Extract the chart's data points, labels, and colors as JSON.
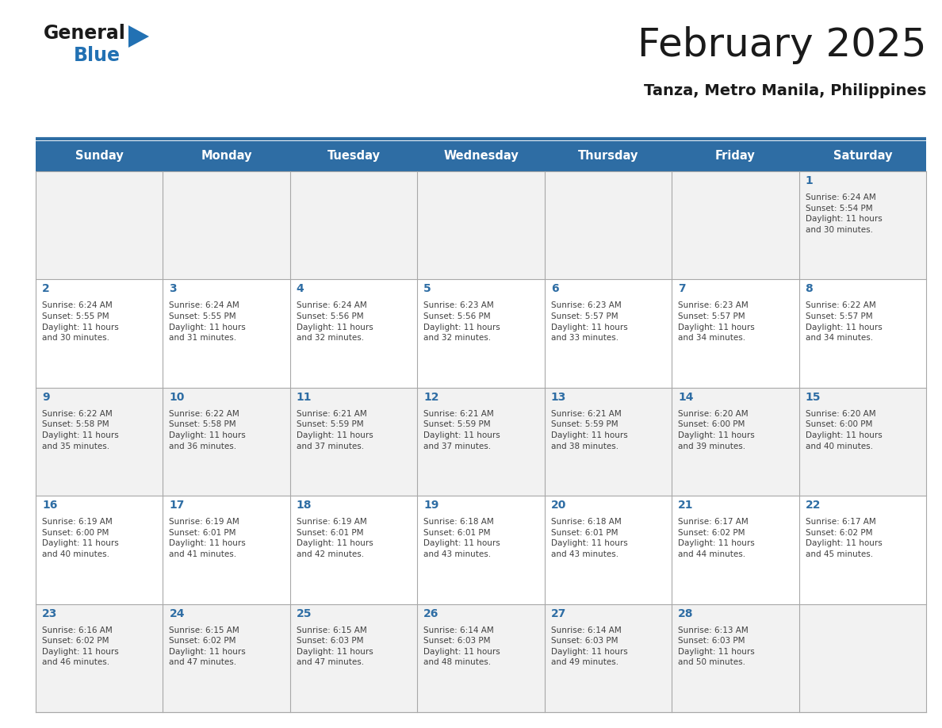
{
  "title": "February 2025",
  "subtitle": "Tanza, Metro Manila, Philippines",
  "header_bg": "#2E6DA4",
  "header_text_color": "#FFFFFF",
  "cell_bg_light": "#F2F2F2",
  "cell_bg_white": "#FFFFFF",
  "day_number_color": "#2E6DA4",
  "text_color": "#404040",
  "grid_color": "#A0A0A0",
  "days_of_week": [
    "Sunday",
    "Monday",
    "Tuesday",
    "Wednesday",
    "Thursday",
    "Friday",
    "Saturday"
  ],
  "calendar_data": [
    [
      null,
      null,
      null,
      null,
      null,
      null,
      {
        "day": 1,
        "sunrise": "6:24 AM",
        "sunset": "5:54 PM",
        "daylight": "11 hours\nand 30 minutes."
      }
    ],
    [
      {
        "day": 2,
        "sunrise": "6:24 AM",
        "sunset": "5:55 PM",
        "daylight": "11 hours\nand 30 minutes."
      },
      {
        "day": 3,
        "sunrise": "6:24 AM",
        "sunset": "5:55 PM",
        "daylight": "11 hours\nand 31 minutes."
      },
      {
        "day": 4,
        "sunrise": "6:24 AM",
        "sunset": "5:56 PM",
        "daylight": "11 hours\nand 32 minutes."
      },
      {
        "day": 5,
        "sunrise": "6:23 AM",
        "sunset": "5:56 PM",
        "daylight": "11 hours\nand 32 minutes."
      },
      {
        "day": 6,
        "sunrise": "6:23 AM",
        "sunset": "5:57 PM",
        "daylight": "11 hours\nand 33 minutes."
      },
      {
        "day": 7,
        "sunrise": "6:23 AM",
        "sunset": "5:57 PM",
        "daylight": "11 hours\nand 34 minutes."
      },
      {
        "day": 8,
        "sunrise": "6:22 AM",
        "sunset": "5:57 PM",
        "daylight": "11 hours\nand 34 minutes."
      }
    ],
    [
      {
        "day": 9,
        "sunrise": "6:22 AM",
        "sunset": "5:58 PM",
        "daylight": "11 hours\nand 35 minutes."
      },
      {
        "day": 10,
        "sunrise": "6:22 AM",
        "sunset": "5:58 PM",
        "daylight": "11 hours\nand 36 minutes."
      },
      {
        "day": 11,
        "sunrise": "6:21 AM",
        "sunset": "5:59 PM",
        "daylight": "11 hours\nand 37 minutes."
      },
      {
        "day": 12,
        "sunrise": "6:21 AM",
        "sunset": "5:59 PM",
        "daylight": "11 hours\nand 37 minutes."
      },
      {
        "day": 13,
        "sunrise": "6:21 AM",
        "sunset": "5:59 PM",
        "daylight": "11 hours\nand 38 minutes."
      },
      {
        "day": 14,
        "sunrise": "6:20 AM",
        "sunset": "6:00 PM",
        "daylight": "11 hours\nand 39 minutes."
      },
      {
        "day": 15,
        "sunrise": "6:20 AM",
        "sunset": "6:00 PM",
        "daylight": "11 hours\nand 40 minutes."
      }
    ],
    [
      {
        "day": 16,
        "sunrise": "6:19 AM",
        "sunset": "6:00 PM",
        "daylight": "11 hours\nand 40 minutes."
      },
      {
        "day": 17,
        "sunrise": "6:19 AM",
        "sunset": "6:01 PM",
        "daylight": "11 hours\nand 41 minutes."
      },
      {
        "day": 18,
        "sunrise": "6:19 AM",
        "sunset": "6:01 PM",
        "daylight": "11 hours\nand 42 minutes."
      },
      {
        "day": 19,
        "sunrise": "6:18 AM",
        "sunset": "6:01 PM",
        "daylight": "11 hours\nand 43 minutes."
      },
      {
        "day": 20,
        "sunrise": "6:18 AM",
        "sunset": "6:01 PM",
        "daylight": "11 hours\nand 43 minutes."
      },
      {
        "day": 21,
        "sunrise": "6:17 AM",
        "sunset": "6:02 PM",
        "daylight": "11 hours\nand 44 minutes."
      },
      {
        "day": 22,
        "sunrise": "6:17 AM",
        "sunset": "6:02 PM",
        "daylight": "11 hours\nand 45 minutes."
      }
    ],
    [
      {
        "day": 23,
        "sunrise": "6:16 AM",
        "sunset": "6:02 PM",
        "daylight": "11 hours\nand 46 minutes."
      },
      {
        "day": 24,
        "sunrise": "6:15 AM",
        "sunset": "6:02 PM",
        "daylight": "11 hours\nand 47 minutes."
      },
      {
        "day": 25,
        "sunrise": "6:15 AM",
        "sunset": "6:03 PM",
        "daylight": "11 hours\nand 47 minutes."
      },
      {
        "day": 26,
        "sunrise": "6:14 AM",
        "sunset": "6:03 PM",
        "daylight": "11 hours\nand 48 minutes."
      },
      {
        "day": 27,
        "sunrise": "6:14 AM",
        "sunset": "6:03 PM",
        "daylight": "11 hours\nand 49 minutes."
      },
      {
        "day": 28,
        "sunrise": "6:13 AM",
        "sunset": "6:03 PM",
        "daylight": "11 hours\nand 50 minutes."
      },
      null
    ]
  ],
  "logo_text_general": "General",
  "logo_text_blue": "Blue",
  "logo_color_general": "#1a1a1a",
  "logo_color_blue": "#2271B3",
  "logo_triangle_color": "#2271B3",
  "title_color": "#1a1a1a",
  "subtitle_color": "#1a1a1a"
}
